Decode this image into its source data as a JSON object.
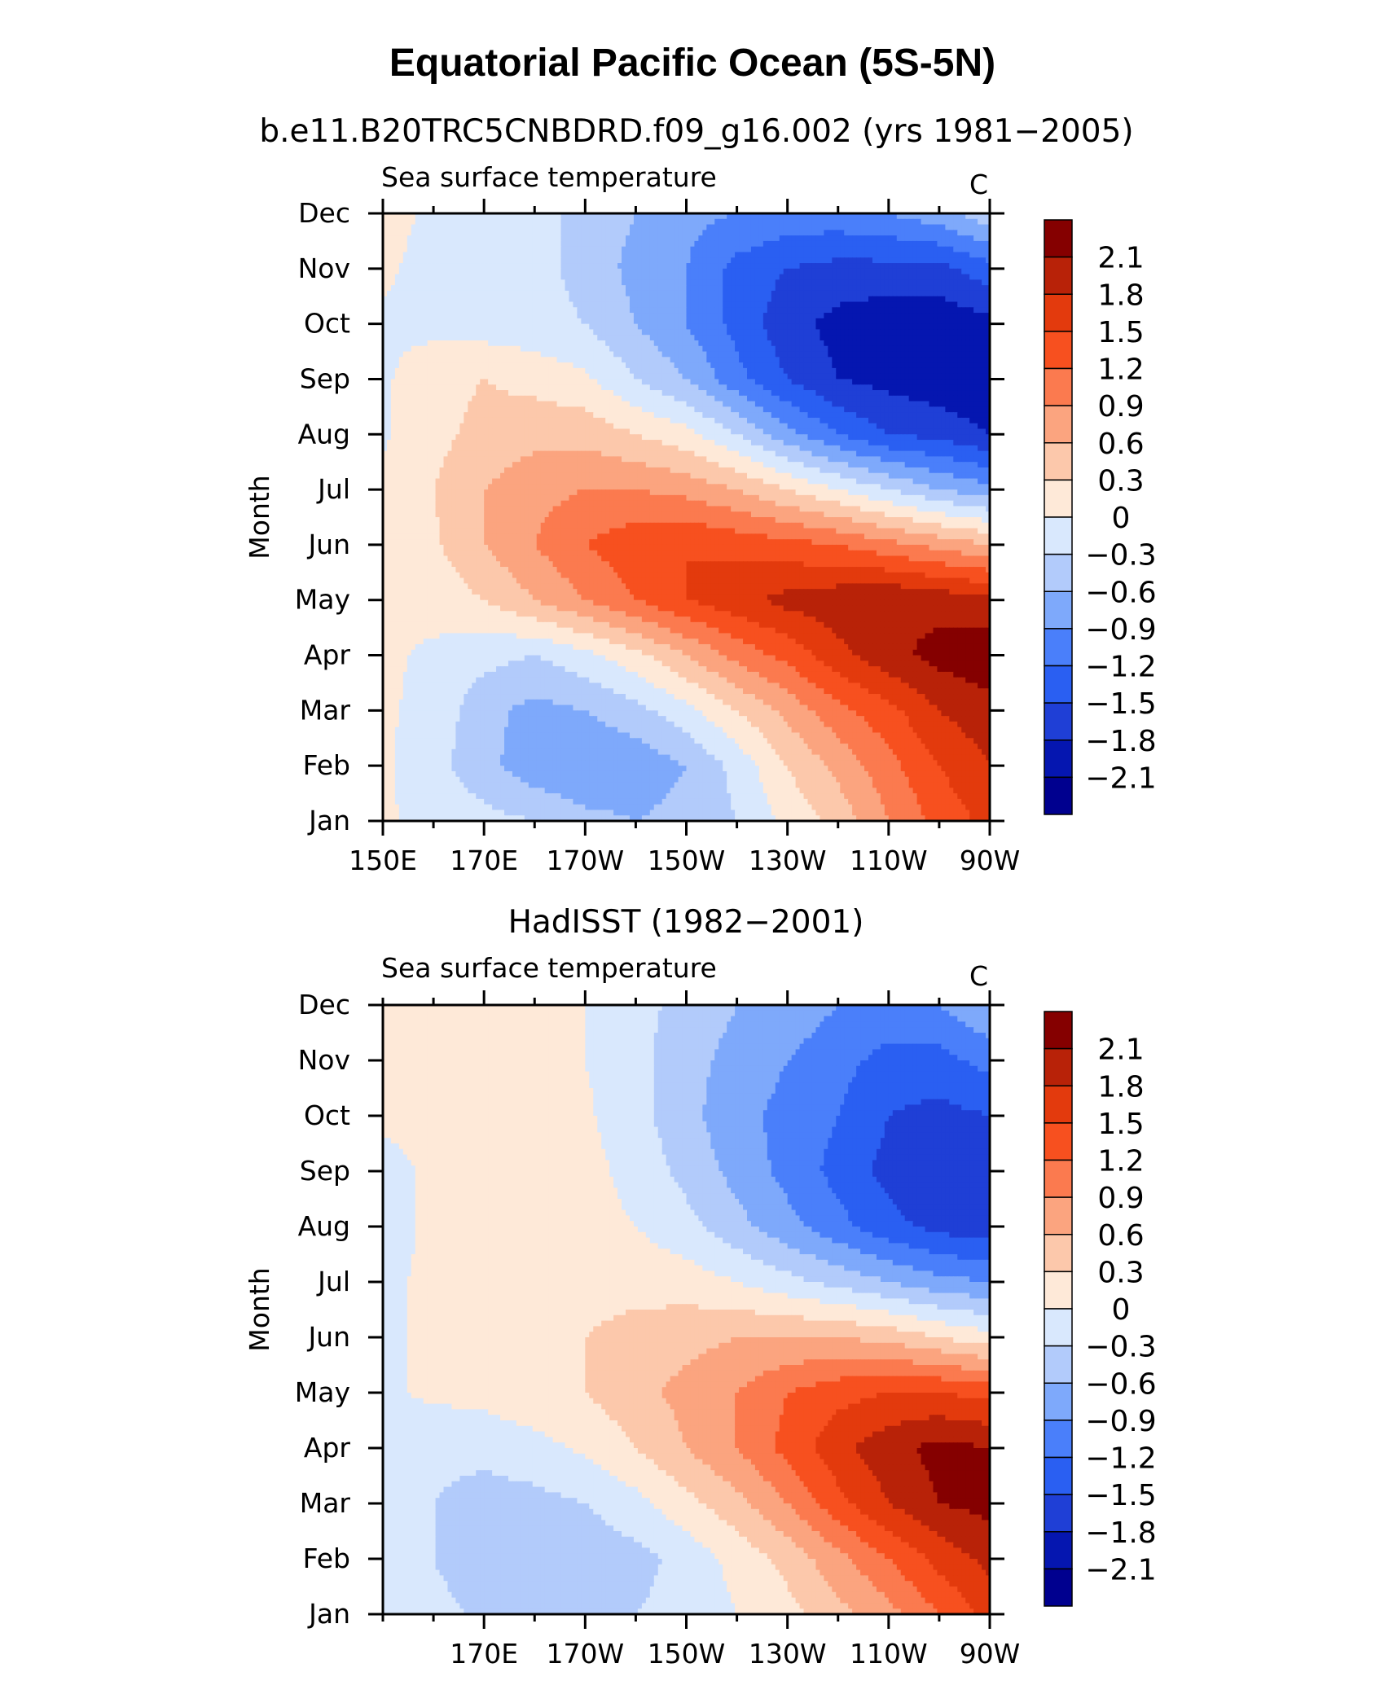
{
  "figure": {
    "title": "Equatorial Pacific Ocean (5S-5N)"
  },
  "colors": {
    "levels": [
      "#00008f",
      "#0516b0",
      "#1f3fd6",
      "#2a5ff2",
      "#4a7ffa",
      "#7ea9fb",
      "#b2cbfb",
      "#d9e8fd",
      "#fee9d8",
      "#fcc8ab",
      "#fba47f",
      "#fb7a4f",
      "#f7501f",
      "#e33a0d",
      "#b82208",
      "#850000"
    ]
  },
  "chart_data": [
    {
      "type": "heatmap",
      "panel_title": "b.e11.B20TRC5CNBDRD.f09_g16.002 (yrs 1981−2005)",
      "left_string": "Sea surface temperature",
      "right_string": "C",
      "ylabel": "Month",
      "y_categories": [
        "Jan",
        "Feb",
        "Mar",
        "Apr",
        "May",
        "Jun",
        "Jul",
        "Aug",
        "Sep",
        "Oct",
        "Nov",
        "Dec"
      ],
      "x_tick_labels": [
        "150E",
        "170E",
        "170W",
        "150W",
        "130W",
        "110W",
        "90W"
      ],
      "x_tick_lon": [
        150,
        170,
        190,
        210,
        230,
        250,
        270
      ],
      "xlim": [
        150,
        270
      ],
      "colorbar_labels": [
        "2.1",
        "1.8",
        "1.5",
        "1.2",
        "0.9",
        "0.6",
        "0.3",
        "0",
        "−0.3",
        "−0.6",
        "−0.9",
        "−1.2",
        "−1.5",
        "−1.8",
        "−2.1"
      ],
      "contour_levels": [
        -2.1,
        -1.8,
        -1.5,
        -1.2,
        -0.9,
        -0.6,
        -0.3,
        0,
        0.3,
        0.6,
        0.9,
        1.2,
        1.5,
        1.8,
        2.1
      ],
      "lon": [
        150,
        160,
        170,
        180,
        190,
        200,
        210,
        220,
        230,
        240,
        250,
        260,
        270
      ],
      "values": [
        [
          0.05,
          -0.1,
          -0.2,
          -0.3,
          -0.5,
          -0.6,
          -0.5,
          -0.3,
          0.1,
          0.4,
          0.9,
          1.3,
          1.6
        ],
        [
          0.05,
          -0.2,
          -0.5,
          -0.8,
          -0.9,
          -0.8,
          -0.6,
          -0.2,
          0.3,
          0.7,
          1.1,
          1.5,
          1.8
        ],
        [
          0.05,
          -0.1,
          -0.5,
          -0.7,
          -0.6,
          -0.4,
          -0.1,
          0.3,
          0.7,
          1.1,
          1.4,
          1.8,
          2.0
        ],
        [
          0.05,
          -0.05,
          -0.2,
          -0.3,
          -0.1,
          0.2,
          0.6,
          1.0,
          1.3,
          1.7,
          2.0,
          2.2,
          2.3
        ],
        [
          0.05,
          0.1,
          0.3,
          0.6,
          0.9,
          1.2,
          1.5,
          1.7,
          1.9,
          2.0,
          2.1,
          2.0,
          1.9
        ],
        [
          0.05,
          0.25,
          0.6,
          0.9,
          1.2,
          1.4,
          1.5,
          1.4,
          1.3,
          1.2,
          1.0,
          0.8,
          0.6
        ],
        [
          0.1,
          0.3,
          0.6,
          0.8,
          0.9,
          0.9,
          0.8,
          0.6,
          0.3,
          0.0,
          -0.3,
          -0.6,
          -0.8
        ],
        [
          -0.05,
          0.2,
          0.4,
          0.5,
          0.5,
          0.3,
          0.1,
          -0.3,
          -0.8,
          -1.2,
          -1.5,
          -1.6,
          -1.8
        ],
        [
          -0.05,
          0.2,
          0.3,
          0.2,
          0.05,
          -0.3,
          -0.6,
          -1.1,
          -1.5,
          -1.8,
          -1.9,
          -2.0,
          -2.1
        ],
        [
          -0.05,
          -0.1,
          -0.15,
          -0.2,
          -0.3,
          -0.6,
          -0.9,
          -1.3,
          -1.7,
          -1.9,
          -2.0,
          -2.0,
          -1.9
        ],
        [
          0.05,
          -0.1,
          -0.15,
          -0.2,
          -0.4,
          -0.7,
          -0.9,
          -1.3,
          -1.5,
          -1.6,
          -1.6,
          -1.6,
          -1.3
        ],
        [
          0.1,
          -0.05,
          -0.1,
          -0.2,
          -0.4,
          -0.6,
          -0.8,
          -0.9,
          -1.0,
          -1.0,
          -0.9,
          -0.7,
          -0.4
        ]
      ]
    },
    {
      "type": "heatmap",
      "panel_title": "HadISST (1982−2001)",
      "left_string": "Sea surface temperature",
      "right_string": "C",
      "ylabel": "Month",
      "y_categories": [
        "Jan",
        "Feb",
        "Mar",
        "Apr",
        "May",
        "Jun",
        "Jul",
        "Aug",
        "Sep",
        "Oct",
        "Nov",
        "Dec"
      ],
      "x_tick_labels": [
        "170E",
        "170W",
        "150W",
        "130W",
        "110W",
        "90W"
      ],
      "x_tick_lon": [
        170,
        190,
        210,
        230,
        250,
        270
      ],
      "xlim": [
        150,
        270
      ],
      "colorbar_labels": [
        "2.1",
        "1.8",
        "1.5",
        "1.2",
        "0.9",
        "0.6",
        "0.3",
        "0",
        "−0.3",
        "−0.6",
        "−0.9",
        "−1.2",
        "−1.5",
        "−1.8",
        "−2.1"
      ],
      "contour_levels": [
        -2.1,
        -1.8,
        -1.5,
        -1.2,
        -0.9,
        -0.6,
        -0.3,
        0,
        0.3,
        0.6,
        0.9,
        1.2,
        1.5,
        1.8,
        2.1
      ],
      "lon": [
        150,
        160,
        170,
        180,
        190,
        200,
        210,
        220,
        230,
        240,
        250,
        260,
        270
      ],
      "values": [
        [
          -0.1,
          -0.2,
          -0.35,
          -0.4,
          -0.4,
          -0.3,
          -0.2,
          0.0,
          0.2,
          0.5,
          0.8,
          1.2,
          1.6
        ],
        [
          -0.1,
          -0.3,
          -0.5,
          -0.55,
          -0.5,
          -0.4,
          -0.2,
          0.1,
          0.4,
          0.8,
          1.2,
          1.6,
          1.9
        ],
        [
          -0.1,
          -0.3,
          -0.45,
          -0.4,
          -0.3,
          -0.1,
          0.2,
          0.5,
          0.9,
          1.4,
          1.8,
          2.1,
          2.2
        ],
        [
          -0.1,
          -0.2,
          -0.2,
          -0.1,
          0.05,
          0.3,
          0.6,
          0.9,
          1.3,
          1.7,
          2.0,
          2.2,
          2.1
        ],
        [
          -0.05,
          0.05,
          0.1,
          0.2,
          0.3,
          0.5,
          0.7,
          0.9,
          1.2,
          1.4,
          1.5,
          1.5,
          1.4
        ],
        [
          -0.05,
          0.05,
          0.1,
          0.2,
          0.3,
          0.4,
          0.5,
          0.6,
          0.6,
          0.6,
          0.5,
          0.3,
          0.1
        ],
        [
          -0.05,
          0.05,
          0.1,
          0.15,
          0.2,
          0.2,
          0.15,
          0.0,
          -0.2,
          -0.4,
          -0.6,
          -0.8,
          -0.9
        ],
        [
          -0.1,
          0.05,
          0.1,
          0.1,
          0.1,
          0.0,
          -0.2,
          -0.5,
          -0.8,
          -1.1,
          -1.4,
          -1.6,
          -1.7
        ],
        [
          -0.1,
          0.05,
          0.2,
          0.3,
          0.1,
          -0.1,
          -0.4,
          -0.7,
          -1.0,
          -1.3,
          -1.6,
          -1.8,
          -1.8
        ],
        [
          0.05,
          0.1,
          0.15,
          0.1,
          0.05,
          -0.2,
          -0.5,
          -0.8,
          -1.0,
          -1.2,
          -1.5,
          -1.6,
          -1.5
        ],
        [
          0.05,
          0.1,
          0.1,
          0.05,
          0.0,
          -0.2,
          -0.5,
          -0.7,
          -0.9,
          -1.1,
          -1.3,
          -1.3,
          -1.1
        ],
        [
          0.05,
          0.1,
          0.1,
          0.1,
          0.0,
          -0.2,
          -0.4,
          -0.6,
          -0.7,
          -0.9,
          -1.0,
          -0.9,
          -0.6
        ]
      ]
    }
  ]
}
